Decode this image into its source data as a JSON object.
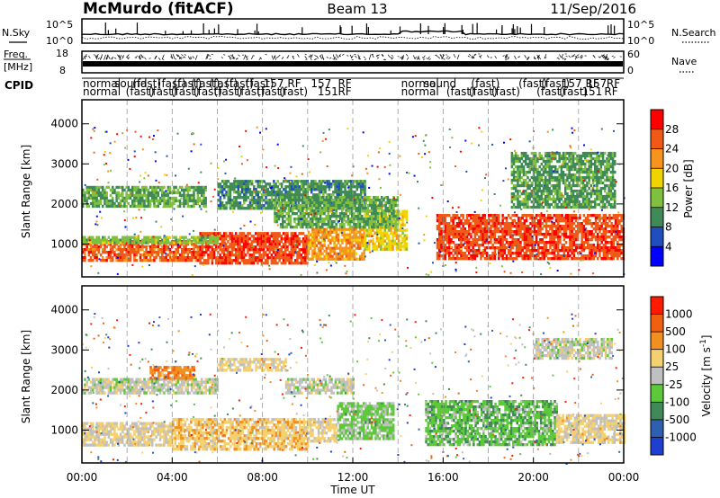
{
  "header": {
    "station": "McMurdo (fitACF)",
    "beam": "Beam 13",
    "date": "11/Sep/2016"
  },
  "top_panels": {
    "nsky_label": "N.Sky",
    "noise_ticks": [
      "10^5",
      "10^0"
    ],
    "nsearch_label": "N.Search",
    "freq_label": "Freq.",
    "freq_unit": "[MHz]",
    "freq_ticks": [
      "18",
      "8"
    ],
    "nave_ticks": [
      "60",
      "0"
    ],
    "nave_label": "Nave",
    "cpid_label": "CPID",
    "cpid_row1": [
      {
        "t": 0.0,
        "text": "normal"
      },
      {
        "t": 1.4,
        "text": "sound"
      },
      {
        "t": 2.2,
        "text": "(fast)"
      },
      {
        "t": 3.3,
        "text": "(fast)"
      },
      {
        "t": 4.0,
        "text": "(fast)"
      },
      {
        "t": 4.8,
        "text": "(fast)"
      },
      {
        "t": 5.6,
        "text": "(fast)"
      },
      {
        "t": 6.3,
        "text": "(fast)"
      },
      {
        "t": 7.2,
        "text": "(fast)"
      },
      {
        "t": 8.0,
        "text": "157 RF"
      },
      {
        "t": 10.1,
        "text": "157"
      },
      {
        "t": 11.3,
        "text": "RF"
      },
      {
        "t": 14.1,
        "text": "normal"
      },
      {
        "t": 15.1,
        "text": "sound"
      },
      {
        "t": 17.2,
        "text": "(fast)"
      },
      {
        "t": 19.3,
        "text": "(fast)"
      },
      {
        "t": 20.3,
        "text": "(fast)"
      },
      {
        "t": 21.2,
        "text": "157 RF"
      },
      {
        "t": 22.3,
        "text": "157"
      },
      {
        "t": 23.2,
        "text": "RF"
      }
    ],
    "cpid_row2": [
      {
        "t": 0.0,
        "text": "normal"
      },
      {
        "t": 1.9,
        "text": "(fast)"
      },
      {
        "t": 2.9,
        "text": "(fast)"
      },
      {
        "t": 3.9,
        "text": "(fast)"
      },
      {
        "t": 4.9,
        "text": "(fast)"
      },
      {
        "t": 5.8,
        "text": "(fast)"
      },
      {
        "t": 6.8,
        "text": "(fast)"
      },
      {
        "t": 7.7,
        "text": "(fast)"
      },
      {
        "t": 8.7,
        "text": "(fast)"
      },
      {
        "t": 10.4,
        "text": "151"
      },
      {
        "t": 11.3,
        "text": "RF"
      },
      {
        "t": 14.1,
        "text": "normal"
      },
      {
        "t": 16.1,
        "text": "(fast)"
      },
      {
        "t": 17.1,
        "text": "(fast)"
      },
      {
        "t": 18.1,
        "text": "(fast)"
      },
      {
        "t": 20.1,
        "text": "(fast)"
      },
      {
        "t": 21.1,
        "text": "(fast)"
      },
      {
        "t": 22.1,
        "text": "151"
      },
      {
        "t": 23.1,
        "text": "RF"
      }
    ]
  },
  "chart_data": [
    {
      "type": "heatmap",
      "quantity": "power",
      "ylabel": "Slant Range [km]",
      "xlabel": "",
      "xlim": [
        0,
        24
      ],
      "ylim": [
        180,
        4600
      ],
      "yticks": [
        1000,
        2000,
        3000,
        4000
      ],
      "colorbar_label": "Power [dB]",
      "colorbar_ticks": [
        "4",
        "8",
        "12",
        "16",
        "20",
        "24",
        "28"
      ],
      "colorbar_colors": [
        "#0000ff",
        "#1f4fbf",
        "#3f8a56",
        "#7fc03f",
        "#f0d400",
        "#f7941d",
        "#f05a16",
        "#ff0000"
      ],
      "colorbar_range": [
        0,
        32
      ],
      "regions": [
        {
          "t0": 0.0,
          "t1": 5.2,
          "r0": 600,
          "r1": 1100,
          "v": 26
        },
        {
          "t0": 5.2,
          "t1": 10.0,
          "r0": 500,
          "r1": 1300,
          "v": 27
        },
        {
          "t0": 10.0,
          "t1": 12.5,
          "r0": 650,
          "r1": 1400,
          "v": 22
        },
        {
          "t0": 12.5,
          "t1": 14.4,
          "r0": 900,
          "r1": 1850,
          "v": 18
        },
        {
          "t0": 15.7,
          "t1": 24.0,
          "r0": 650,
          "r1": 1750,
          "v": 27
        },
        {
          "t0": 0.0,
          "t1": 6.0,
          "r0": 1000,
          "r1": 1200,
          "v": 14
        },
        {
          "t0": 0.0,
          "t1": 5.5,
          "r0": 1950,
          "r1": 2450,
          "v": 12
        },
        {
          "t0": 6.0,
          "t1": 12.5,
          "r0": 1900,
          "r1": 2600,
          "v": 10
        },
        {
          "t0": 8.5,
          "t1": 14.0,
          "r0": 1400,
          "r1": 2200,
          "v": 12
        },
        {
          "t0": 19.0,
          "t1": 23.6,
          "r0": 1900,
          "r1": 3300,
          "v": 11
        }
      ]
    },
    {
      "type": "heatmap",
      "quantity": "velocity",
      "ylabel": "Slant Range [km]",
      "xlabel": "Time UT",
      "xlim": [
        0,
        24
      ],
      "ylim": [
        180,
        4600
      ],
      "yticks": [
        1000,
        2000,
        3000,
        4000
      ],
      "xticks": [
        "00:00",
        "04:00",
        "08:00",
        "12:00",
        "16:00",
        "20:00",
        "00:00"
      ],
      "colorbar_label": "Velocity [m s^-1]",
      "colorbar_ticks": [
        "1000",
        "500",
        "100",
        "25",
        "-25",
        "-100",
        "-500",
        "-1000"
      ],
      "colorbar_colors": [
        "#1f3fd0",
        "#2f5fb0",
        "#3f8a56",
        "#5cc83a",
        "#c0c0c0",
        "#f5d070",
        "#f09020",
        "#f06010",
        "#ff1a00"
      ],
      "colorbar_range": [
        -1200,
        1200
      ],
      "regions": [
        {
          "t0": 0.0,
          "t1": 4.0,
          "r0": 600,
          "r1": 1200,
          "v": 150
        },
        {
          "t0": 4.0,
          "t1": 10.0,
          "r0": 550,
          "r1": 1300,
          "v": 300
        },
        {
          "t0": 10.0,
          "t1": 11.3,
          "r0": 700,
          "r1": 1300,
          "v": 200
        },
        {
          "t0": 11.3,
          "t1": 13.8,
          "r0": 800,
          "r1": 1700,
          "v": -200
        },
        {
          "t0": 15.2,
          "t1": 21.0,
          "r0": 650,
          "r1": 1750,
          "v": -300
        },
        {
          "t0": 21.0,
          "t1": 24.0,
          "r0": 700,
          "r1": 1400,
          "v": 200
        },
        {
          "t0": 0.0,
          "t1": 6.0,
          "r0": 1950,
          "r1": 2300,
          "v": 0
        },
        {
          "t0": 3.0,
          "t1": 5.0,
          "r0": 2300,
          "r1": 2600,
          "v": 600
        },
        {
          "t0": 6.0,
          "t1": 9.0,
          "r0": 2500,
          "r1": 2800,
          "v": 200
        },
        {
          "t0": 9.0,
          "t1": 12.0,
          "r0": 1900,
          "r1": 2300,
          "v": 0
        },
        {
          "t0": 20.0,
          "t1": 23.5,
          "r0": 2800,
          "r1": 3300,
          "v": 0
        }
      ]
    }
  ]
}
